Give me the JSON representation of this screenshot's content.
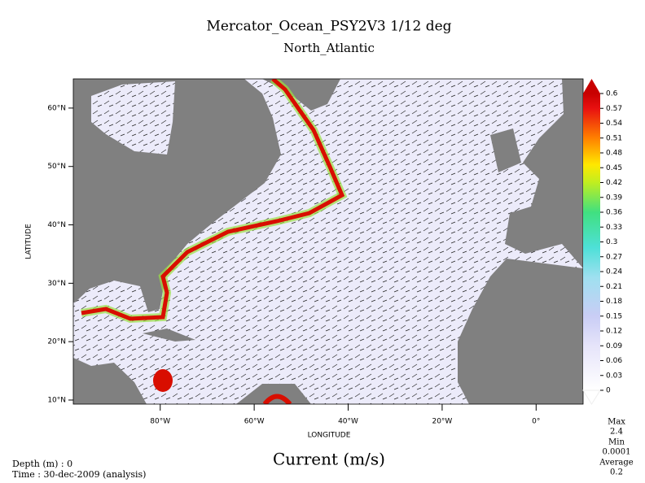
{
  "chart_data": {
    "type": "vector-map",
    "title": "Mercator_Ocean_PSY2V3 1/12 deg",
    "subtitle": "North_Atlantic",
    "xlabel": "LONGITUDE",
    "ylabel": "LATITUDE",
    "xlim": [
      -98.5,
      10
    ],
    "ylim": [
      9.3,
      65
    ],
    "xticks": [
      {
        "value": -80,
        "label": "80°W"
      },
      {
        "value": -60,
        "label": "60°W"
      },
      {
        "value": -40,
        "label": "40°W"
      },
      {
        "value": -20,
        "label": "20°W"
      },
      {
        "value": 0,
        "label": "0°"
      }
    ],
    "yticks": [
      {
        "value": 10,
        "label": "10°N"
      },
      {
        "value": 20,
        "label": "20°N"
      },
      {
        "value": 30,
        "label": "30°N"
      },
      {
        "value": 40,
        "label": "40°N"
      },
      {
        "value": 50,
        "label": "50°N"
      },
      {
        "value": 60,
        "label": "60°N"
      }
    ],
    "colorbar": {
      "label": "Current (m/s)",
      "lim": [
        0,
        0.6
      ],
      "ticks": [
        0,
        0.03,
        0.06,
        0.09,
        0.12,
        0.15,
        0.18,
        0.21,
        0.24,
        0.27,
        0.3,
        0.33,
        0.36,
        0.39,
        0.42,
        0.45,
        0.48,
        0.51,
        0.54,
        0.57,
        0.6
      ]
    },
    "stats": [
      {
        "label": "Max",
        "value": 2.4
      },
      {
        "label": "Min",
        "value": 0.0001
      },
      {
        "label": "Average",
        "value": 0.2
      }
    ],
    "depth": "Depth (m) : 0",
    "time": "Time : 30-dec-2009 (analysis)"
  }
}
